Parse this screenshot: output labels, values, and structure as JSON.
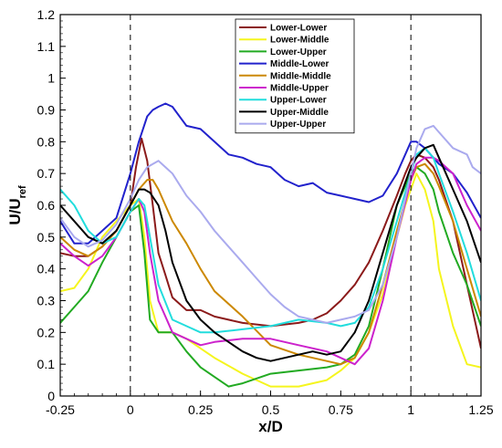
{
  "chart_data": {
    "type": "line",
    "xlabel": "x/D",
    "ylabel_main": "U/U",
    "ylabel_sub": "ref",
    "xlim": [
      -0.25,
      1.25
    ],
    "ylim": [
      0,
      1.2
    ],
    "xticks": [
      -0.25,
      0,
      0.25,
      0.5,
      0.75,
      1,
      1.25
    ],
    "xtick_labels": [
      "-0.25",
      "0",
      "0.25",
      "0.5",
      "0.75",
      "1",
      "1.25"
    ],
    "yticks": [
      0,
      0.1,
      0.2,
      0.3,
      0.4,
      0.5,
      0.6,
      0.7,
      0.8,
      0.9,
      1,
      1.1,
      1.2
    ],
    "ytick_labels": [
      "0",
      "0.1",
      "0.2",
      "0.3",
      "0.4",
      "0.5",
      "0.6",
      "0.7",
      "0.8",
      "0.9",
      "1",
      "1.1",
      "1.2"
    ],
    "vlines": [
      0,
      1
    ],
    "legend_position": "top-right",
    "grid": false,
    "series": [
      {
        "name": "Lower-Lower",
        "color": "#8B1A1A",
        "x": [
          -0.25,
          -0.2,
          -0.15,
          -0.1,
          -0.05,
          0,
          0.02,
          0.04,
          0.06,
          0.08,
          0.1,
          0.125,
          0.15,
          0.2,
          0.25,
          0.3,
          0.4,
          0.5,
          0.6,
          0.65,
          0.7,
          0.75,
          0.8,
          0.85,
          0.9,
          0.95,
          0.98,
          1.0,
          1.02,
          1.05,
          1.08,
          1.1,
          1.15,
          1.2,
          1.25
        ],
        "y": [
          0.45,
          0.44,
          0.44,
          0.47,
          0.52,
          0.6,
          0.72,
          0.81,
          0.74,
          0.6,
          0.45,
          0.38,
          0.31,
          0.27,
          0.27,
          0.25,
          0.23,
          0.22,
          0.23,
          0.24,
          0.26,
          0.3,
          0.35,
          0.42,
          0.52,
          0.63,
          0.7,
          0.74,
          0.76,
          0.75,
          0.72,
          0.68,
          0.55,
          0.35,
          0.15
        ]
      },
      {
        "name": "Lower-Middle",
        "color": "#F5F51E",
        "x": [
          -0.25,
          -0.2,
          -0.15,
          -0.1,
          -0.05,
          0,
          0.03,
          0.05,
          0.07,
          0.1,
          0.15,
          0.2,
          0.3,
          0.4,
          0.5,
          0.6,
          0.7,
          0.75,
          0.8,
          0.85,
          0.9,
          0.95,
          0.98,
          1.0,
          1.02,
          1.05,
          1.08,
          1.1,
          1.15,
          1.2,
          1.25
        ],
        "y": [
          0.33,
          0.34,
          0.4,
          0.5,
          0.55,
          0.6,
          0.62,
          0.5,
          0.3,
          0.2,
          0.2,
          0.18,
          0.12,
          0.07,
          0.03,
          0.03,
          0.05,
          0.08,
          0.12,
          0.2,
          0.32,
          0.5,
          0.6,
          0.65,
          0.7,
          0.65,
          0.55,
          0.4,
          0.22,
          0.1,
          0.09
        ]
      },
      {
        "name": "Lower-Upper",
        "color": "#22AA22",
        "x": [
          -0.25,
          -0.2,
          -0.15,
          -0.1,
          -0.05,
          0,
          0.03,
          0.05,
          0.07,
          0.1,
          0.15,
          0.2,
          0.25,
          0.3,
          0.35,
          0.4,
          0.5,
          0.6,
          0.7,
          0.75,
          0.8,
          0.85,
          0.9,
          0.95,
          1.0,
          1.02,
          1.05,
          1.08,
          1.1,
          1.15,
          1.2,
          1.25
        ],
        "y": [
          0.23,
          0.28,
          0.33,
          0.42,
          0.5,
          0.58,
          0.6,
          0.45,
          0.24,
          0.2,
          0.2,
          0.14,
          0.09,
          0.06,
          0.03,
          0.04,
          0.07,
          0.08,
          0.09,
          0.1,
          0.13,
          0.22,
          0.4,
          0.6,
          0.7,
          0.72,
          0.7,
          0.65,
          0.58,
          0.45,
          0.35,
          0.22
        ]
      },
      {
        "name": "Middle-Lower",
        "color": "#2222CC",
        "x": [
          -0.25,
          -0.2,
          -0.15,
          -0.1,
          -0.05,
          0,
          0.03,
          0.06,
          0.08,
          0.1,
          0.125,
          0.15,
          0.2,
          0.25,
          0.3,
          0.35,
          0.4,
          0.45,
          0.5,
          0.55,
          0.6,
          0.65,
          0.7,
          0.75,
          0.8,
          0.85,
          0.9,
          0.95,
          1.0,
          1.02,
          1.05,
          1.1,
          1.15,
          1.2,
          1.25
        ],
        "y": [
          0.55,
          0.48,
          0.48,
          0.52,
          0.56,
          0.7,
          0.8,
          0.88,
          0.9,
          0.91,
          0.92,
          0.91,
          0.85,
          0.84,
          0.8,
          0.76,
          0.75,
          0.73,
          0.72,
          0.68,
          0.66,
          0.67,
          0.64,
          0.63,
          0.62,
          0.61,
          0.63,
          0.7,
          0.8,
          0.8,
          0.78,
          0.73,
          0.7,
          0.64,
          0.56
        ]
      },
      {
        "name": "Middle-Middle",
        "color": "#CC8800",
        "x": [
          -0.25,
          -0.2,
          -0.15,
          -0.1,
          -0.05,
          0,
          0.03,
          0.06,
          0.08,
          0.1,
          0.15,
          0.2,
          0.25,
          0.3,
          0.4,
          0.5,
          0.6,
          0.7,
          0.75,
          0.8,
          0.85,
          0.9,
          0.95,
          1.0,
          1.02,
          1.05,
          1.08,
          1.1,
          1.15,
          1.2,
          1.25
        ],
        "y": [
          0.5,
          0.46,
          0.44,
          0.47,
          0.52,
          0.6,
          0.65,
          0.68,
          0.68,
          0.65,
          0.55,
          0.48,
          0.4,
          0.33,
          0.25,
          0.16,
          0.13,
          0.11,
          0.1,
          0.12,
          0.2,
          0.35,
          0.52,
          0.68,
          0.72,
          0.73,
          0.7,
          0.66,
          0.55,
          0.4,
          0.25
        ]
      },
      {
        "name": "Middle-Upper",
        "color": "#CC22CC",
        "x": [
          -0.25,
          -0.2,
          -0.15,
          -0.1,
          -0.05,
          0,
          0.03,
          0.05,
          0.07,
          0.1,
          0.15,
          0.2,
          0.25,
          0.3,
          0.4,
          0.5,
          0.6,
          0.7,
          0.75,
          0.8,
          0.85,
          0.9,
          0.95,
          1.0,
          1.02,
          1.05,
          1.08,
          1.1,
          1.15,
          1.2,
          1.25
        ],
        "y": [
          0.48,
          0.44,
          0.41,
          0.44,
          0.5,
          0.58,
          0.62,
          0.58,
          0.45,
          0.3,
          0.2,
          0.18,
          0.16,
          0.17,
          0.18,
          0.18,
          0.16,
          0.14,
          0.12,
          0.1,
          0.15,
          0.3,
          0.5,
          0.68,
          0.73,
          0.75,
          0.75,
          0.74,
          0.7,
          0.6,
          0.52
        ]
      },
      {
        "name": "Upper-Lower",
        "color": "#22DDDD",
        "x": [
          -0.25,
          -0.2,
          -0.15,
          -0.1,
          -0.05,
          0,
          0.03,
          0.05,
          0.07,
          0.1,
          0.15,
          0.2,
          0.25,
          0.3,
          0.4,
          0.5,
          0.6,
          0.7,
          0.75,
          0.8,
          0.85,
          0.9,
          0.95,
          1.0,
          1.02,
          1.05,
          1.08,
          1.1,
          1.15,
          1.2,
          1.25
        ],
        "y": [
          0.65,
          0.6,
          0.52,
          0.48,
          0.5,
          0.58,
          0.62,
          0.6,
          0.5,
          0.35,
          0.24,
          0.22,
          0.2,
          0.2,
          0.21,
          0.22,
          0.24,
          0.23,
          0.22,
          0.23,
          0.28,
          0.4,
          0.55,
          0.7,
          0.76,
          0.78,
          0.75,
          0.7,
          0.58,
          0.45,
          0.3
        ]
      },
      {
        "name": "Upper-Middle",
        "color": "#000000",
        "x": [
          -0.25,
          -0.2,
          -0.15,
          -0.1,
          -0.05,
          0,
          0.03,
          0.05,
          0.07,
          0.1,
          0.125,
          0.15,
          0.2,
          0.25,
          0.3,
          0.35,
          0.4,
          0.45,
          0.5,
          0.55,
          0.6,
          0.65,
          0.7,
          0.75,
          0.8,
          0.85,
          0.9,
          0.95,
          1.0,
          1.02,
          1.05,
          1.08,
          1.1,
          1.15,
          1.2,
          1.25
        ],
        "y": [
          0.6,
          0.55,
          0.5,
          0.48,
          0.52,
          0.6,
          0.65,
          0.65,
          0.64,
          0.6,
          0.52,
          0.42,
          0.3,
          0.24,
          0.2,
          0.17,
          0.14,
          0.12,
          0.11,
          0.12,
          0.13,
          0.14,
          0.13,
          0.14,
          0.2,
          0.3,
          0.45,
          0.6,
          0.72,
          0.75,
          0.78,
          0.79,
          0.75,
          0.65,
          0.55,
          0.42
        ]
      },
      {
        "name": "Upper-Upper",
        "color": "#AAAAEE",
        "x": [
          -0.25,
          -0.2,
          -0.15,
          -0.1,
          -0.05,
          0,
          0.03,
          0.06,
          0.08,
          0.1,
          0.125,
          0.15,
          0.2,
          0.25,
          0.3,
          0.35,
          0.4,
          0.45,
          0.5,
          0.55,
          0.6,
          0.65,
          0.7,
          0.75,
          0.8,
          0.85,
          0.9,
          0.95,
          1.0,
          1.02,
          1.05,
          1.08,
          1.1,
          1.15,
          1.2,
          1.22,
          1.25
        ],
        "y": [
          0.56,
          0.5,
          0.47,
          0.49,
          0.54,
          0.62,
          0.68,
          0.72,
          0.73,
          0.74,
          0.72,
          0.7,
          0.63,
          0.58,
          0.52,
          0.47,
          0.42,
          0.37,
          0.32,
          0.28,
          0.25,
          0.24,
          0.23,
          0.24,
          0.25,
          0.27,
          0.35,
          0.5,
          0.7,
          0.78,
          0.84,
          0.85,
          0.83,
          0.78,
          0.76,
          0.72,
          0.7
        ]
      }
    ]
  }
}
